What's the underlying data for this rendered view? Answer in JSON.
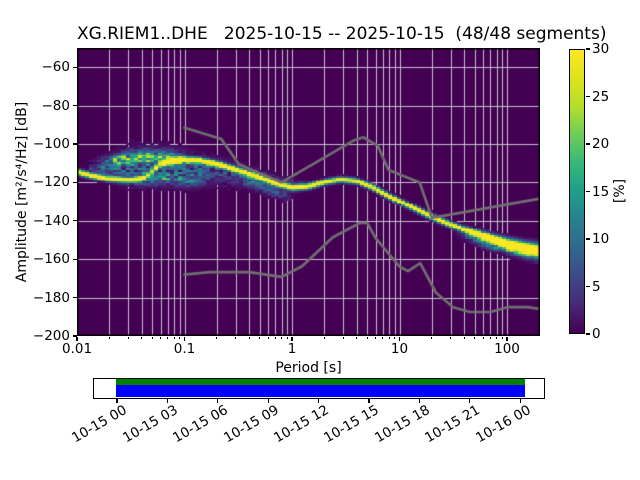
{
  "title": "XG.RIEM1..DHE   2025-10-15 -- 2025-10-15  (48/48 segments)",
  "axes": {
    "xlabel": "Period [s]",
    "ylabel": "Amplitude [m²/s⁴/Hz] [dB]",
    "x_tick_values": [
      0.01,
      0.1,
      1,
      10,
      100
    ],
    "x_tick_labels": [
      "0.01",
      "0.1",
      "1",
      "10",
      "100"
    ],
    "x_range_period_s": [
      0.01,
      200
    ],
    "y_tick_values": [
      -60,
      -80,
      -100,
      -120,
      -140,
      -160,
      -180,
      -200
    ],
    "y_tick_labels": [
      "−60",
      "−80",
      "−100",
      "−120",
      "−140",
      "−160",
      "−180",
      "−200"
    ],
    "y_range_db": [
      -200,
      -50
    ]
  },
  "colorbar": {
    "label": "[%]",
    "tick_values": [
      0,
      5,
      10,
      15,
      20,
      25,
      30
    ],
    "tick_labels": [
      "0",
      "5",
      "10",
      "15",
      "20",
      "25",
      "30"
    ],
    "range": [
      0,
      30
    ],
    "viridis": [
      "#440154",
      "#482878",
      "#3e4a89",
      "#31688e",
      "#26828e",
      "#1f9e89",
      "#35b779",
      "#6dcd59",
      "#b4de2c",
      "#dde318",
      "#fde725"
    ]
  },
  "colors": {
    "plot_background": "#440154",
    "grid": "#c4c1cb",
    "noise_model": "#6f6f6f",
    "frame": "#000000",
    "timeline_green": "#008000",
    "timeline_blue": "#0000ff"
  },
  "timeline": {
    "tick_labels": [
      "10-15 00",
      "10-15 03",
      "10-15 06",
      "10-15 09",
      "10-15 12",
      "10-15 15",
      "10-15 18",
      "10-15 21",
      "10-16 00"
    ]
  },
  "chart_data": {
    "type": "heatmap",
    "title": "XG.RIEM1..DHE   2025-10-15 -- 2025-10-15  (48/48 segments)",
    "station": "XG.RIEM1..DHE",
    "date_range": "2025-10-15 -- 2025-10-15",
    "segments": "48/48",
    "xlabel": "Period [s]",
    "ylabel": "Amplitude [m²/s⁴/Hz] [dB]",
    "x_range_period_s": [
      0.01,
      200
    ],
    "y_range_db": [
      -200,
      -50
    ],
    "colorbar_percent_range": [
      0,
      30
    ],
    "grid": true,
    "mode_curve_period_db": [
      [
        0.01,
        -114.5
      ],
      [
        0.014,
        -116.5
      ],
      [
        0.019,
        -118.0
      ],
      [
        0.028,
        -118.8
      ],
      [
        0.038,
        -118.5
      ],
      [
        0.048,
        -115.0
      ],
      [
        0.06,
        -110.5
      ],
      [
        0.079,
        -108.8
      ],
      [
        0.1,
        -108.3
      ],
      [
        0.14,
        -108.8
      ],
      [
        0.2,
        -110.5
      ],
      [
        0.32,
        -113.8
      ],
      [
        0.5,
        -117.2
      ],
      [
        0.71,
        -120.5
      ],
      [
        1.0,
        -122.8
      ],
      [
        1.4,
        -122.2
      ],
      [
        2.0,
        -119.8
      ],
      [
        2.8,
        -118.5
      ],
      [
        4.0,
        -119.3
      ],
      [
        5.6,
        -122.5
      ],
      [
        7.9,
        -127.0
      ],
      [
        10,
        -130.0
      ],
      [
        14,
        -133.8
      ],
      [
        20,
        -138.0
      ],
      [
        32,
        -142.5
      ],
      [
        50,
        -146.5
      ],
      [
        71,
        -149.5
      ],
      [
        100,
        -152.0
      ],
      [
        141,
        -154.0
      ],
      [
        204,
        -155.8
      ]
    ],
    "noise_model_high_period_db": [
      [
        0.1,
        -91.5
      ],
      [
        0.22,
        -97.4
      ],
      [
        0.32,
        -110.5
      ],
      [
        0.8,
        -120.0
      ],
      [
        3.8,
        -98.0
      ],
      [
        4.6,
        -96.5
      ],
      [
        6.3,
        -101.0
      ],
      [
        7.9,
        -113.5
      ],
      [
        15.4,
        -120.0
      ],
      [
        20.0,
        -138.5
      ],
      [
        204,
        -128.4
      ]
    ],
    "noise_model_low_period_db": [
      [
        0.1,
        -168.0
      ],
      [
        0.17,
        -166.7
      ],
      [
        0.4,
        -166.7
      ],
      [
        0.8,
        -169.2
      ],
      [
        1.24,
        -163.7
      ],
      [
        2.4,
        -148.6
      ],
      [
        4.3,
        -141.1
      ],
      [
        5.0,
        -141.1
      ],
      [
        6.0,
        -149.0
      ],
      [
        10.0,
        -163.8
      ],
      [
        12.0,
        -166.2
      ],
      [
        15.6,
        -162.1
      ],
      [
        21.9,
        -177.5
      ],
      [
        31.6,
        -185.0
      ],
      [
        45.0,
        -187.5
      ],
      [
        70.0,
        -187.5
      ],
      [
        101.0,
        -185.0
      ],
      [
        154.0,
        -185.0
      ],
      [
        204,
        -185.9
      ]
    ],
    "cloud_components": {
      "upper_branch_center": [
        [
          0.016,
          -112.0
        ],
        [
          0.025,
          -108.5
        ],
        [
          0.04,
          -106.8
        ],
        [
          0.063,
          -106.8
        ],
        [
          0.112,
          -108.0
        ]
      ],
      "lower_branch_center": [
        [
          0.032,
          -118.6
        ],
        [
          0.063,
          -118.0
        ],
        [
          0.158,
          -119.5
        ]
      ],
      "diffuse_center": [
        [
          0.013,
          -113.0
        ],
        [
          0.032,
          -111.5
        ],
        [
          0.079,
          -112.0
        ],
        [
          0.2,
          -114.5
        ],
        [
          0.5,
          -118.0
        ],
        [
          1.26,
          -122.0
        ]
      ],
      "diffuse_sigma": [
        [
          0.013,
          2.5
        ],
        [
          0.032,
          5.5
        ],
        [
          0.1,
          5.0
        ],
        [
          0.32,
          3.5
        ],
        [
          1.26,
          2.0
        ]
      ],
      "diffuse_amp": [
        [
          0.013,
          3.0
        ],
        [
          0.025,
          7.5
        ],
        [
          0.05,
          8.0
        ],
        [
          0.1,
          7.0
        ],
        [
          0.25,
          5.0
        ],
        [
          0.63,
          3.5
        ],
        [
          1.26,
          1.5
        ]
      ]
    },
    "render_params": {
      "main_amp": 34,
      "main_sigma_db": 1.0,
      "tail_widen_start_log10": 1.6,
      "tail_widen_rate": 1.9,
      "upper_branch": {
        "amp": 14,
        "sigma": 2.2,
        "fade_in": [
          -1.8,
          -1.6
        ],
        "fade_out": [
          -1.15,
          -0.95
        ]
      },
      "lower_branch": {
        "amp": 9,
        "sigma": 2.0,
        "fade_in": [
          -1.5,
          -1.4
        ],
        "fade_out": [
          -0.95,
          -0.75
        ]
      },
      "submode": {
        "amp": 6,
        "sigma": 2.0,
        "offset": -4.5,
        "range": [
          -0.5,
          0.02
        ]
      },
      "tail_fringe": {
        "amp": 11,
        "sigma": 1.8,
        "offset": -2.8,
        "amp2": 6,
        "sigma2": 1.2,
        "offset2": 1.3,
        "fade_in": [
          1.5,
          1.8
        ]
      },
      "transition_dip": [
        -1.48,
        -1.38,
        -1.25,
        -1.15
      ],
      "bin_log10_width": 0.037625,
      "bin_db": 1
    }
  }
}
